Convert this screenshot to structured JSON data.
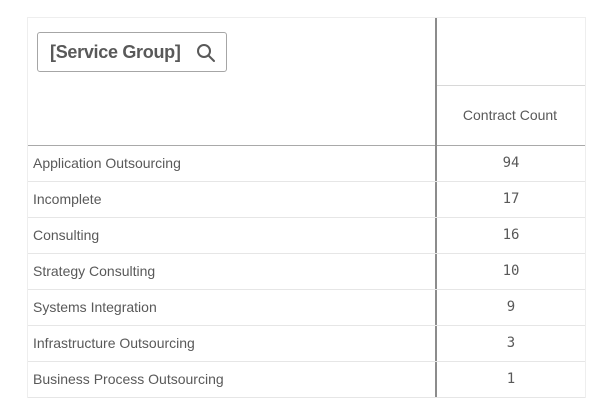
{
  "table": {
    "dimension_search_label": "[Service Group]",
    "measure_header": "Contract Count",
    "rows": [
      {
        "label": "Application Outsourcing",
        "value": "94"
      },
      {
        "label": "Incomplete",
        "value": "17"
      },
      {
        "label": "Consulting",
        "value": "16"
      },
      {
        "label": "Strategy Consulting",
        "value": "10"
      },
      {
        "label": "Systems Integration",
        "value": "9"
      },
      {
        "label": "Infrastructure Outsourcing",
        "value": "3"
      },
      {
        "label": "Business Process Outsourcing",
        "value": "1"
      }
    ]
  },
  "icons": {
    "search": "search-icon"
  },
  "colors": {
    "text": "#595959",
    "divider": "#8c8c8c",
    "row_border": "#e6e6e6"
  }
}
